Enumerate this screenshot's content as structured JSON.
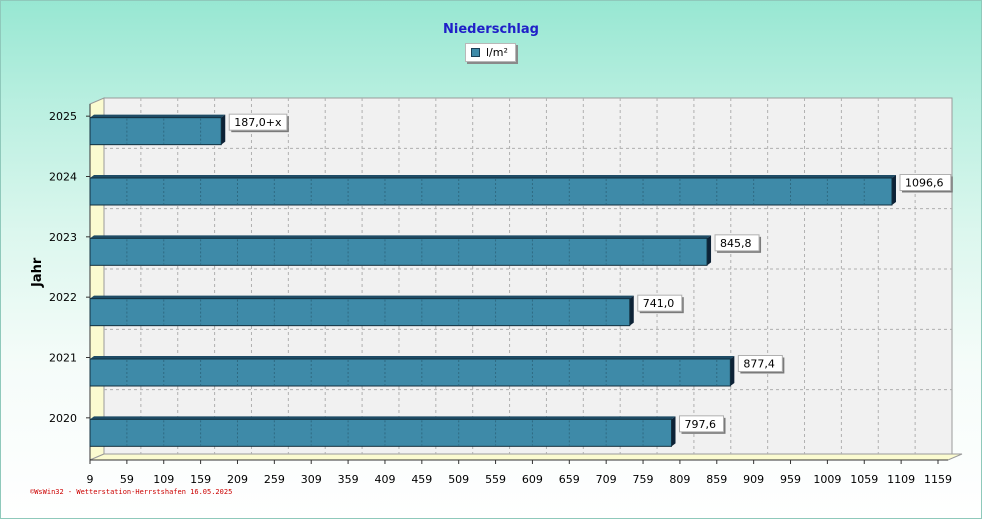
{
  "chart_data": {
    "type": "bar",
    "orientation": "horizontal",
    "title": "Niederschlag",
    "legend": "l/m²",
    "ylabel": "Jahr",
    "xlabel": "",
    "categories": [
      "2025",
      "2024",
      "2023",
      "2022",
      "2021",
      "2020"
    ],
    "values": [
      187.0,
      1096.6,
      845.8,
      741.0,
      877.4,
      797.6
    ],
    "data_labels": [
      "187,0+x",
      "1096,6",
      "845,8",
      "741,0",
      "877,4",
      "797,6"
    ],
    "xlim": [
      9,
      1159
    ],
    "xticks": [
      "9",
      "59",
      "109",
      "159",
      "209",
      "259",
      "309",
      "359",
      "409",
      "459",
      "509",
      "559",
      "609",
      "659",
      "709",
      "759",
      "809",
      "859",
      "909",
      "959",
      "1009",
      "1059",
      "1109",
      "1159"
    ],
    "grid": true,
    "legend_position": "top-center",
    "colors": {
      "bar": "#3e8aa8",
      "bar_top": "#1f4c66",
      "bar_side": "#0d2236",
      "floor": "#fbfbd0",
      "title": "#2020c8",
      "footer": "#cc0000"
    }
  },
  "footer_text": "©WsWin32 - Wetterstation-Herrstshafen 16.05.2025"
}
